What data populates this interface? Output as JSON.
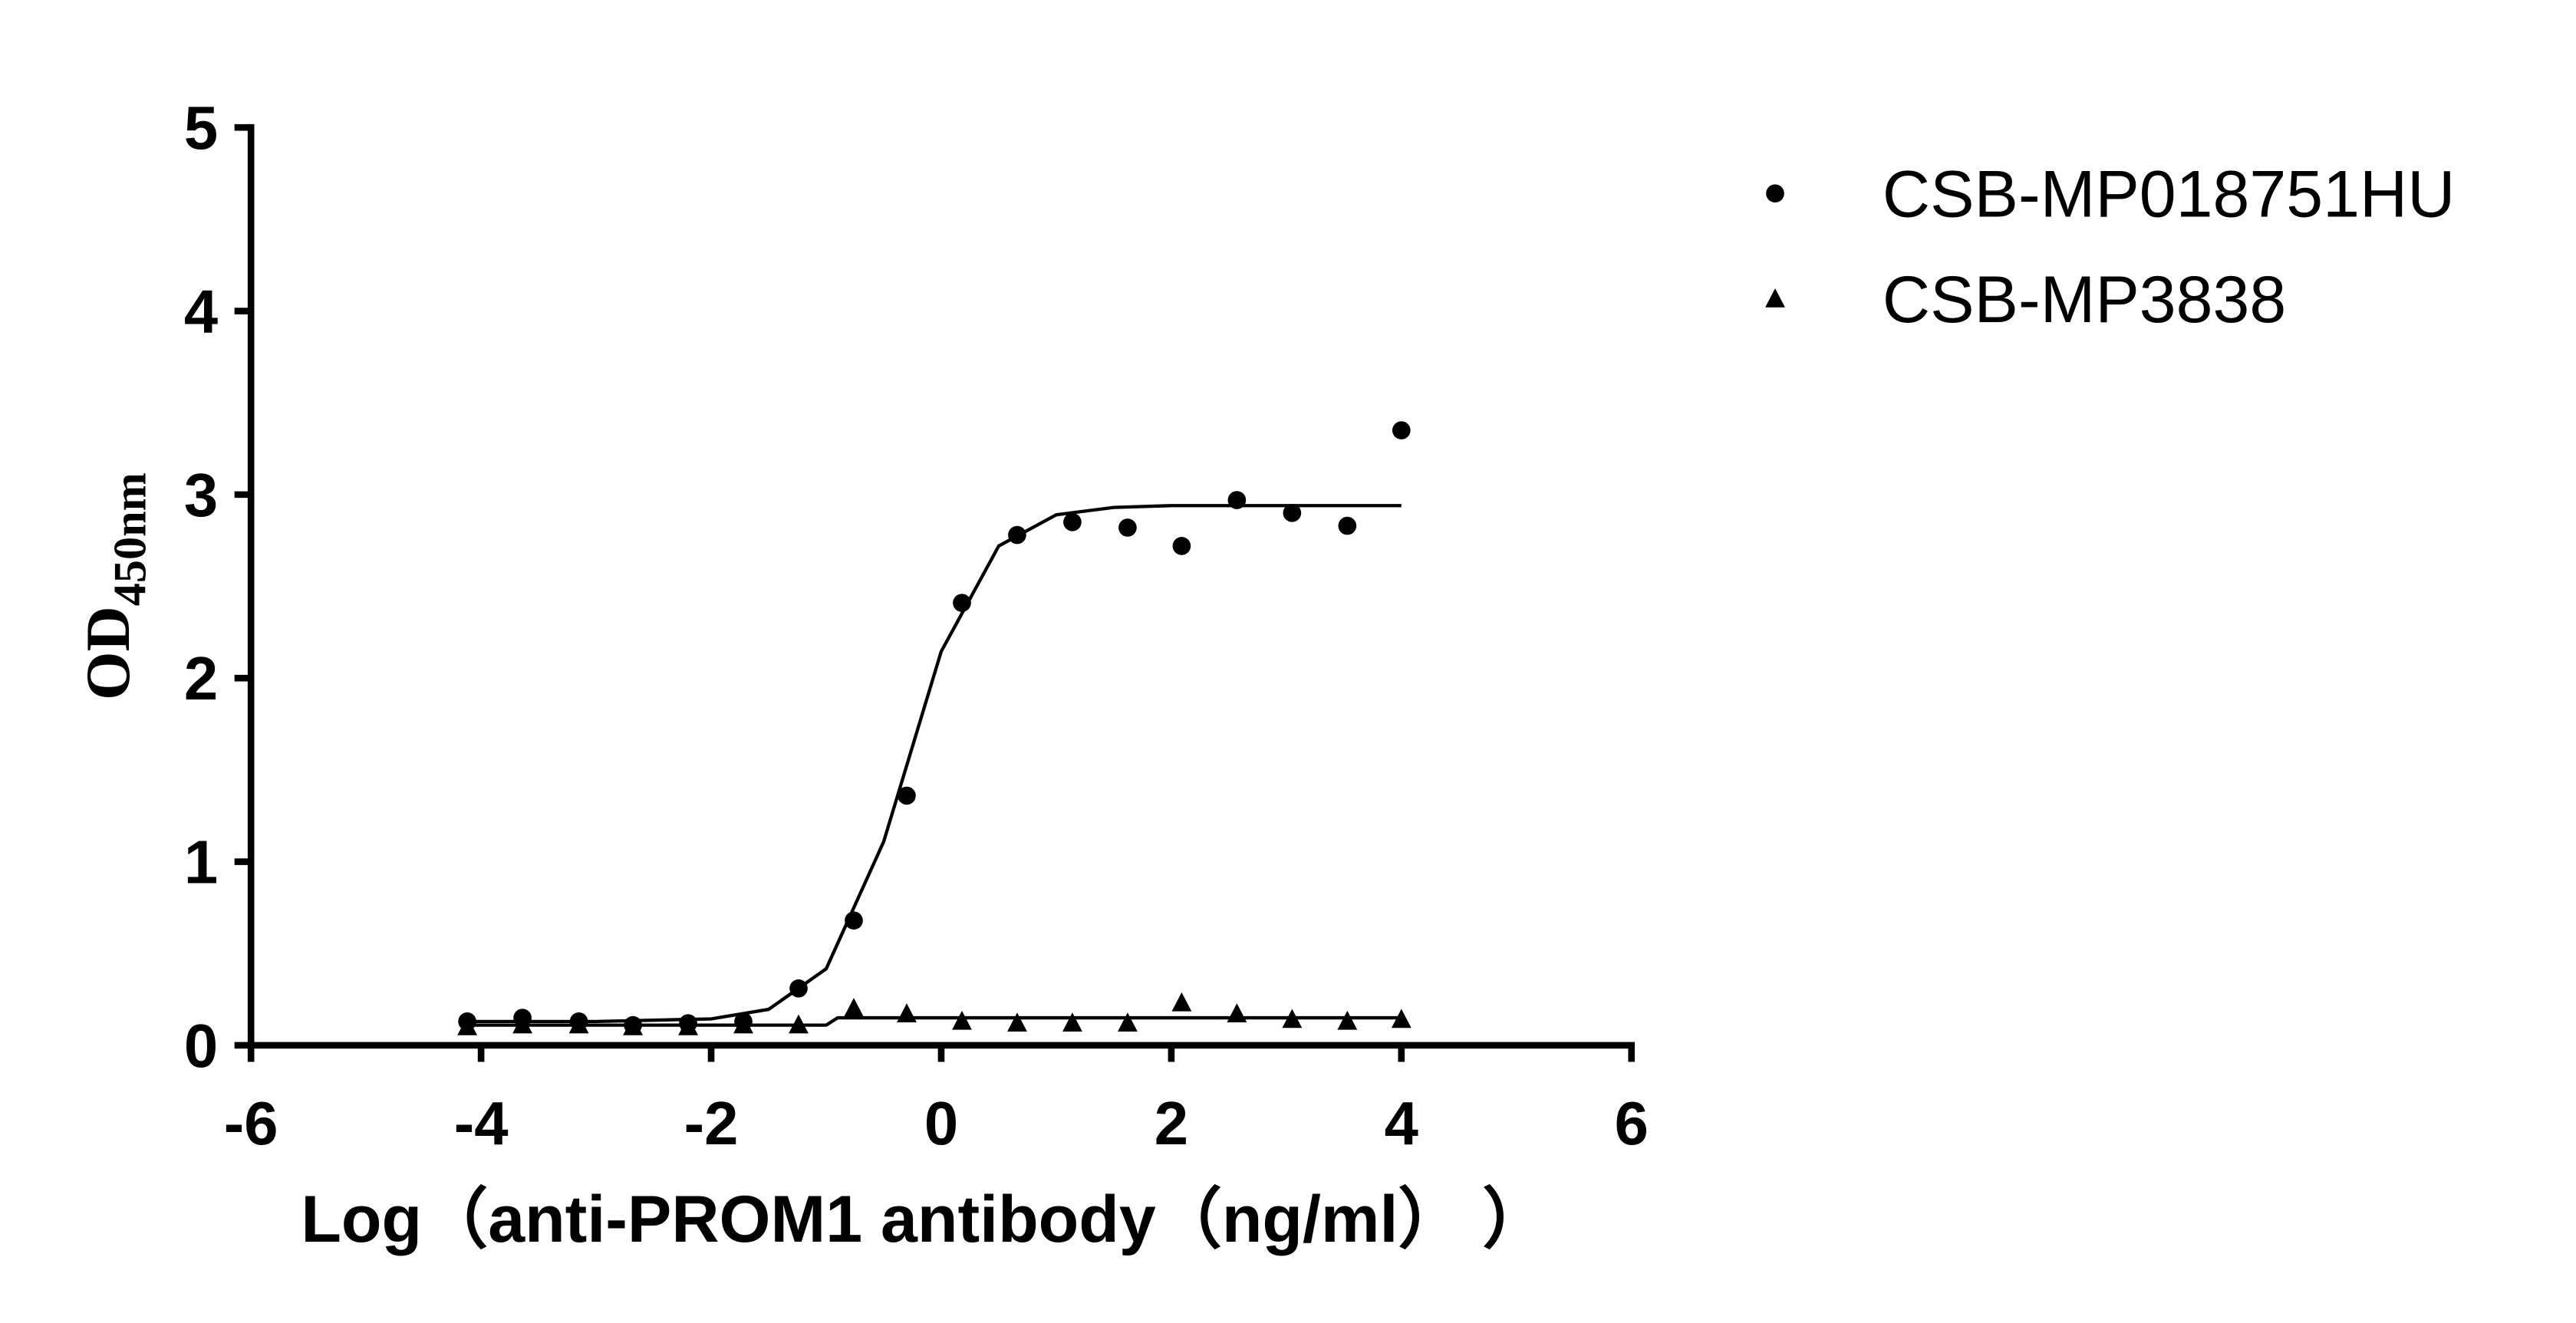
{
  "chart_data": {
    "type": "scatter",
    "x_label": "Log（anti-PROM1 antibody（ng/ml） ）",
    "y_label": {
      "main": "OD",
      "sub": "450nm"
    },
    "xlim": [
      -6,
      6
    ],
    "xticks": [
      -6,
      -4,
      -2,
      0,
      2,
      4,
      6
    ],
    "ylim": [
      0,
      5
    ],
    "yticks": [
      0,
      1,
      2,
      3,
      4,
      5
    ],
    "legend": "top-right",
    "series": [
      {
        "name": "CSB-MP018751HU",
        "color": "#000000",
        "marker": "circle",
        "x": [
          -4.12,
          -3.64,
          -3.15,
          -2.68,
          -2.2,
          -1.72,
          -1.24,
          -0.76,
          -0.3,
          0.18,
          0.66,
          1.14,
          1.62,
          2.09,
          2.57,
          3.05,
          3.53,
          4.0
        ],
        "values": [
          0.13,
          0.15,
          0.13,
          0.11,
          0.12,
          0.13,
          0.31,
          0.68,
          1.36,
          2.41,
          2.78,
          2.85,
          2.82,
          2.72,
          2.97,
          2.9,
          2.83,
          3.35
        ],
        "fit": {
          "x": [
            -4.12,
            -3,
            -2,
            -1.5,
            -1,
            -0.5,
            0,
            0.5,
            1,
            1.5,
            2,
            3,
            4.0
          ],
          "values": [
            0.13,
            0.13,
            0.144,
            0.196,
            0.417,
            1.11,
            2.146,
            2.72,
            2.89,
            2.93,
            2.94,
            2.94,
            2.94
          ]
        }
      },
      {
        "name": "CSB-MP3838",
        "color": "#000000",
        "marker": "triangle",
        "x": [
          -4.12,
          -3.64,
          -3.15,
          -2.68,
          -2.2,
          -1.72,
          -1.24,
          -0.76,
          -0.3,
          0.18,
          0.66,
          1.14,
          1.62,
          2.09,
          2.57,
          3.05,
          3.53,
          4.0
        ],
        "values": [
          0.1,
          0.11,
          0.11,
          0.1,
          0.1,
          0.11,
          0.11,
          0.2,
          0.17,
          0.13,
          0.12,
          0.12,
          0.12,
          0.23,
          0.17,
          0.14,
          0.13,
          0.14
        ],
        "fit": {
          "x": [
            -4.12,
            -1.0,
            -0.9,
            4.0
          ],
          "values": [
            0.11,
            0.11,
            0.15,
            0.15
          ]
        }
      }
    ]
  }
}
